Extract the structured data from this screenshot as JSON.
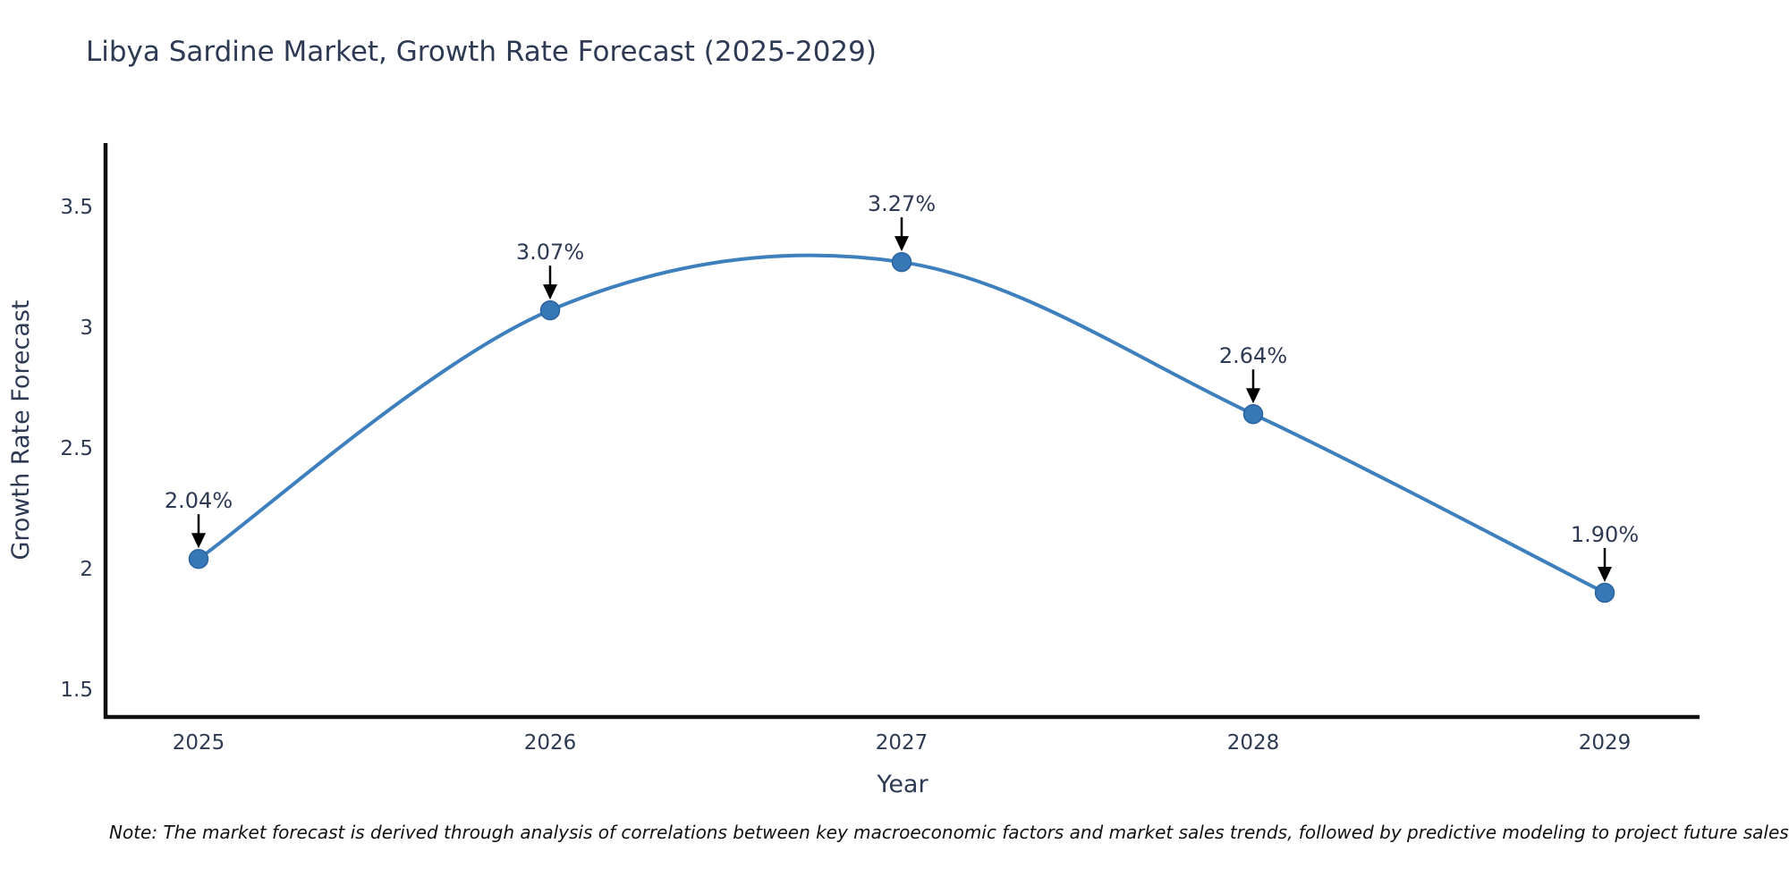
{
  "title": "Libya Sardine Market, Growth Rate Forecast (2025-2029)",
  "note": "Note: The market forecast is derived through analysis of correlations between key macroeconomic factors and market sales trends, followed by predictive modeling to project future sales",
  "chart_data": {
    "type": "line",
    "title": "Libya Sardine Market, Growth Rate Forecast (2025-2029)",
    "x": [
      2025,
      2026,
      2027,
      2028,
      2029
    ],
    "series": [
      {
        "name": "Growth Rate Forecast",
        "values": [
          2.04,
          3.07,
          3.27,
          2.64,
          1.9
        ],
        "point_labels": [
          "2.04%",
          "3.07%",
          "3.27%",
          "2.64%",
          "1.90%"
        ]
      }
    ],
    "xlabel": "Year",
    "ylabel": "Growth Rate Forecast",
    "xtick_labels": [
      "2025",
      "2026",
      "2027",
      "2028",
      "2029"
    ],
    "ytick_values": [
      1.5,
      2,
      2.5,
      3,
      3.5
    ],
    "ytick_labels": [
      "1.5",
      "2",
      "2.5",
      "3",
      "3.5"
    ],
    "ylim": [
      1.39,
      3.77
    ],
    "line_shape": "spline",
    "grid": false,
    "legend_position": "none",
    "colors": {
      "line": "#3e7fbd",
      "marker_fill": "#3678b5",
      "marker_stroke": "#2b639f",
      "axis_line": "#101010",
      "arrow": "#000000",
      "text": "#2e3a54"
    }
  }
}
